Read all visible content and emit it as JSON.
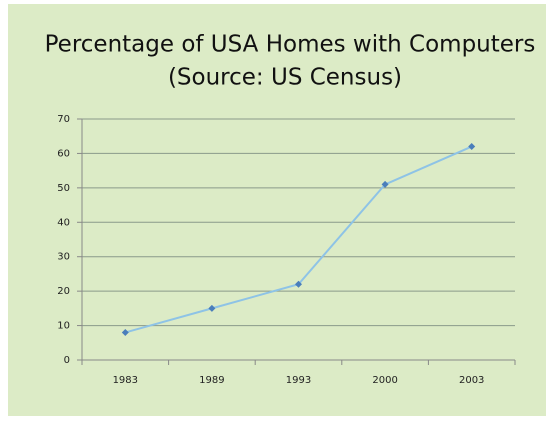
{
  "chart_data": {
    "type": "line",
    "title": "Percentage of USA Homes with Computers",
    "subtitle": "(Source:  US Census)",
    "categories": [
      "1983",
      "1989",
      "1993",
      "2000",
      "2003"
    ],
    "series": [
      {
        "name": "Percentage",
        "color": "#8ec3e6",
        "marker_color": "#4a7ebb",
        "values": [
          8,
          15,
          22,
          51,
          62
        ]
      }
    ],
    "ylim": [
      0,
      70
    ],
    "yticks": [
      0,
      10,
      20,
      30,
      40,
      50,
      60,
      70
    ],
    "grid": true
  }
}
